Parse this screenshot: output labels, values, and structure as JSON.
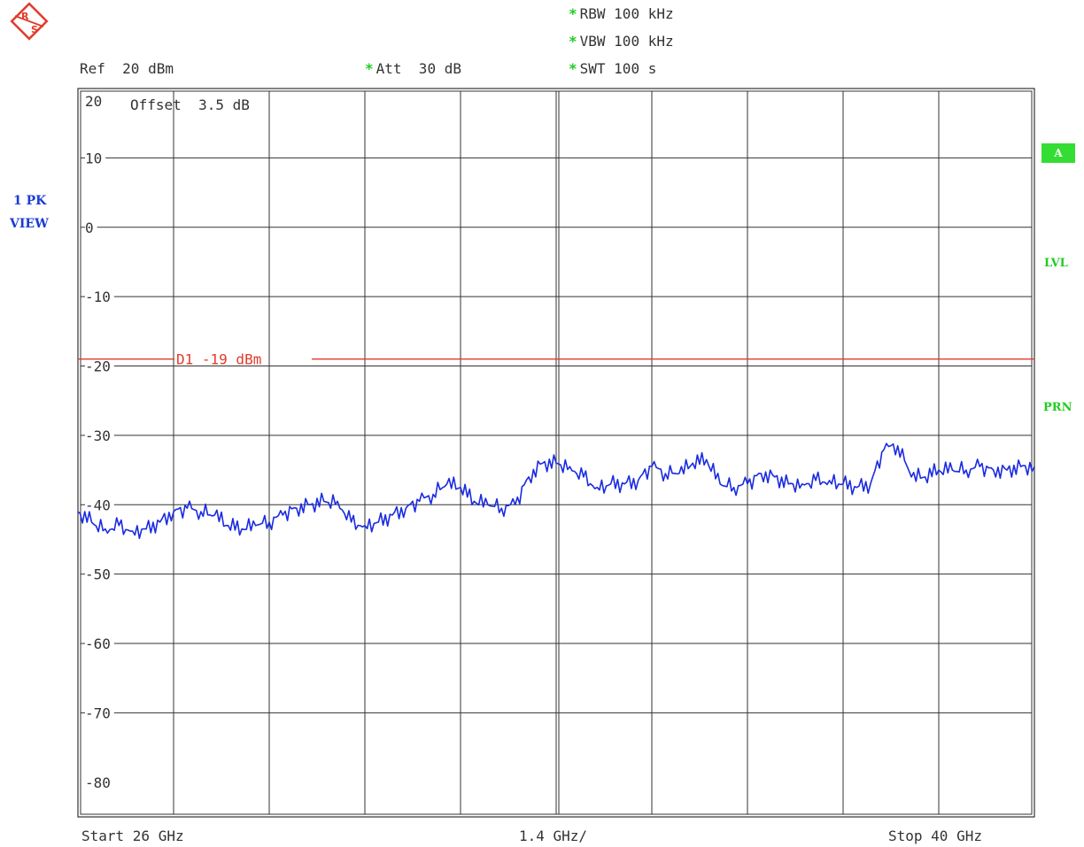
{
  "header": {
    "rbw": "RBW 100 kHz",
    "vbw": "VBW 100 kHz",
    "swt": "SWT 100 s",
    "ref": "Ref  20 dBm",
    "att": "Att  30 dB",
    "offset": "Offset  3.5 dB"
  },
  "trace_label": {
    "line1": "1 PK",
    "line2": "VIEW"
  },
  "side_labels": {
    "badge": "A",
    "lvl": "LVL",
    "prn": "PRN"
  },
  "footer": {
    "start": "Start 26 GHz",
    "span": "1.4 GHz/",
    "stop": "Stop 40 GHz"
  },
  "colors": {
    "trace": "#1a2be0",
    "display_line": "#e23b2b",
    "grid": "#333333",
    "green": "#22cc22"
  },
  "chart_data": {
    "type": "line",
    "xlim": [
      26,
      40
    ],
    "ylim": [
      -85,
      20
    ],
    "y_ticks": [
      20,
      10,
      0,
      -10,
      -20,
      -30,
      -40,
      -50,
      -60,
      -70,
      -80
    ],
    "y_tick_labels": [
      "20",
      "10",
      "0",
      "-10",
      "-20",
      "-30",
      "-40",
      "-50",
      "-60",
      "-70",
      "-80"
    ],
    "x_grid_divisions": 10,
    "grid": true,
    "display_line": {
      "value": -19,
      "label": "D1  -19 dBm"
    },
    "series": [
      {
        "x": [
          26.0,
          26.2,
          26.4,
          26.6,
          26.8,
          27.0,
          27.2,
          27.4,
          27.6,
          27.8,
          28.0,
          28.2,
          28.4,
          28.6,
          28.8,
          29.0,
          29.2,
          29.4,
          29.6,
          29.8,
          30.0,
          30.2,
          30.4,
          30.6,
          30.8,
          31.0,
          31.2,
          31.4,
          31.6,
          31.8,
          32.0,
          32.2,
          32.4,
          32.6,
          32.8,
          33.0,
          33.2,
          33.4,
          33.6,
          33.8,
          34.0,
          34.2,
          34.4,
          34.6,
          34.8,
          35.0,
          35.2,
          35.4,
          35.6,
          35.8,
          36.0,
          36.2,
          36.4,
          36.6,
          36.8,
          37.0,
          37.2,
          37.4,
          37.6,
          37.8,
          38.0,
          38.2,
          38.4,
          38.6,
          38.8,
          39.0,
          39.2,
          39.4,
          39.6,
          39.8,
          40.0
        ],
        "values": [
          -41.0,
          -42.5,
          -43.5,
          -43.0,
          -43.8,
          -43.5,
          -42.5,
          -41.0,
          -40.5,
          -41.0,
          -41.5,
          -43.0,
          -43.5,
          -43.0,
          -42.5,
          -41.5,
          -40.5,
          -40.0,
          -39.5,
          -39.5,
          -42.5,
          -43.0,
          -42.5,
          -41.5,
          -40.5,
          -39.5,
          -38.5,
          -37.0,
          -37.5,
          -39.5,
          -40.0,
          -40.5,
          -40.0,
          -36.0,
          -34.0,
          -34.0,
          -34.5,
          -36.0,
          -37.5,
          -37.0,
          -37.0,
          -36.5,
          -34.5,
          -35.5,
          -35.5,
          -34.0,
          -33.5,
          -37.0,
          -37.5,
          -37.0,
          -35.5,
          -36.0,
          -37.0,
          -37.0,
          -36.5,
          -36.5,
          -37.0,
          -37.5,
          -37.0,
          -32.0,
          -31.5,
          -36.0,
          -36.0,
          -35.0,
          -35.0,
          -35.0,
          -34.5,
          -35.0,
          -35.0,
          -34.5,
          -34.5
        ]
      }
    ]
  }
}
